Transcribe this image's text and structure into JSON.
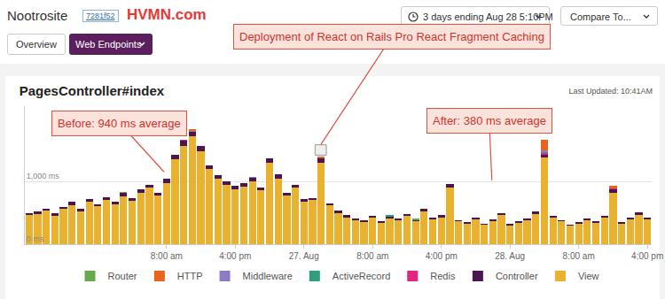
{
  "page": {
    "site": "Nootrosite",
    "commit": "7281f52",
    "brand": "HVMN.com",
    "range_picker": "3 days ending Aug 28 5:10PM",
    "compare": "Compare To...",
    "tabs": [
      "Overview",
      "Web Endpoints"
    ],
    "last_updated": "Last Updated: 10:41AM"
  },
  "chart_data": {
    "type": "bar",
    "stacked": true,
    "title": "PagesController#index",
    "annotations": [
      "Deployment of React on Rails Pro React Fragment Caching",
      "Before: 940 ms average",
      "After: 380 ms average"
    ],
    "categories": [
      null,
      null,
      null,
      null,
      null,
      null,
      null,
      null,
      null,
      null,
      null,
      null,
      null,
      null,
      null,
      null,
      "8:00 am",
      null,
      null,
      null,
      null,
      null,
      null,
      null,
      "4:00 pm",
      null,
      null,
      null,
      null,
      null,
      null,
      null,
      "27. Aug",
      null,
      null,
      null,
      null,
      null,
      null,
      null,
      "8:00 am",
      null,
      null,
      null,
      null,
      null,
      null,
      null,
      "4:00 pm",
      null,
      null,
      null,
      null,
      null,
      null,
      null,
      "28. Aug",
      null,
      null,
      null,
      null,
      null,
      null,
      null,
      "8:00 am",
      null,
      null,
      null,
      null,
      null,
      null,
      null,
      "4:00 pm"
    ],
    "series": [
      {
        "name": "Router",
        "color": "#6aa84f",
        "values": [
          0,
          0,
          0,
          0,
          0,
          0,
          0,
          0,
          0,
          0,
          0,
          15,
          0,
          0,
          0,
          0,
          0,
          0,
          0,
          0,
          0,
          0,
          0,
          0,
          0,
          0,
          0,
          0,
          0,
          0,
          0,
          0,
          0,
          0,
          0,
          0,
          0,
          0,
          0,
          0,
          0,
          0,
          0,
          0,
          0,
          20,
          0,
          0,
          0,
          0,
          0,
          0,
          0,
          0,
          0,
          0,
          0,
          0,
          0,
          0,
          0,
          0,
          0,
          0,
          0,
          0,
          0,
          0,
          0,
          0,
          0,
          0,
          0
        ]
      },
      {
        "name": "HTTP",
        "color": "#e8641b",
        "values": [
          0,
          0,
          0,
          0,
          0,
          0,
          0,
          0,
          0,
          0,
          0,
          0,
          0,
          0,
          0,
          0,
          0,
          0,
          0,
          25,
          0,
          0,
          0,
          0,
          0,
          0,
          0,
          0,
          0,
          0,
          0,
          0,
          0,
          0,
          20,
          0,
          0,
          0,
          0,
          0,
          0,
          0,
          0,
          0,
          0,
          0,
          0,
          0,
          0,
          0,
          0,
          0,
          0,
          0,
          0,
          0,
          0,
          0,
          0,
          0,
          170,
          0,
          0,
          0,
          0,
          0,
          0,
          0,
          30,
          0,
          0,
          0,
          0
        ]
      },
      {
        "name": "Middleware",
        "color": "#8e7cc3",
        "values": [
          0,
          0,
          0,
          0,
          0,
          0,
          0,
          0,
          0,
          0,
          0,
          0,
          0,
          0,
          0,
          0,
          0,
          0,
          0,
          20,
          0,
          0,
          0,
          0,
          0,
          0,
          15,
          0,
          0,
          0,
          0,
          0,
          0,
          0,
          0,
          0,
          0,
          0,
          0,
          0,
          0,
          0,
          0,
          0,
          0,
          0,
          0,
          0,
          0,
          0,
          0,
          0,
          0,
          0,
          0,
          0,
          0,
          0,
          0,
          0,
          20,
          0,
          0,
          0,
          0,
          0,
          0,
          0,
          0,
          0,
          0,
          0,
          0
        ]
      },
      {
        "name": "ActiveRecord",
        "color": "#2e9e7e",
        "values": [
          0,
          0,
          0,
          0,
          0,
          0,
          0,
          0,
          0,
          0,
          0,
          0,
          0,
          0,
          0,
          0,
          0,
          0,
          0,
          0,
          0,
          0,
          0,
          0,
          0,
          0,
          0,
          0,
          0,
          0,
          0,
          0,
          0,
          0,
          0,
          0,
          0,
          0,
          0,
          0,
          0,
          0,
          25,
          0,
          0,
          0,
          0,
          0,
          0,
          0,
          0,
          0,
          0,
          0,
          0,
          0,
          0,
          0,
          0,
          0,
          15,
          0,
          0,
          0,
          0,
          0,
          0,
          0,
          0,
          0,
          0,
          0,
          0
        ]
      },
      {
        "name": "Redis",
        "color": "#e0267f",
        "values": [
          0,
          0,
          0,
          0,
          0,
          0,
          0,
          0,
          0,
          0,
          0,
          0,
          0,
          0,
          0,
          0,
          0,
          0,
          20,
          0,
          0,
          0,
          0,
          0,
          0,
          0,
          0,
          0,
          0,
          0,
          0,
          0,
          0,
          0,
          0,
          0,
          0,
          0,
          0,
          0,
          0,
          0,
          0,
          0,
          0,
          0,
          0,
          0,
          0,
          0,
          0,
          0,
          0,
          0,
          0,
          0,
          0,
          0,
          0,
          0,
          25,
          0,
          0,
          0,
          0,
          0,
          0,
          0,
          15,
          0,
          0,
          0,
          0
        ]
      },
      {
        "name": "Controller",
        "color": "#4b1650",
        "values": [
          35,
          40,
          35,
          45,
          30,
          50,
          40,
          45,
          35,
          50,
          40,
          55,
          45,
          60,
          50,
          45,
          60,
          80,
          90,
          70,
          85,
          60,
          55,
          50,
          45,
          50,
          55,
          45,
          70,
          60,
          40,
          50,
          45,
          40,
          70,
          35,
          30,
          30,
          25,
          30,
          30,
          25,
          30,
          30,
          35,
          25,
          40,
          30,
          30,
          60,
          25,
          25,
          30,
          20,
          25,
          35,
          20,
          25,
          30,
          35,
          50,
          30,
          25,
          20,
          25,
          30,
          25,
          30,
          60,
          25,
          30,
          35,
          30
        ]
      },
      {
        "name": "View",
        "color": "#e8b130",
        "values": [
          460,
          480,
          530,
          450,
          560,
          620,
          520,
          680,
          600,
          700,
          640,
          760,
          690,
          820,
          900,
          780,
          980,
          1350,
          1560,
          1720,
          1480,
          1200,
          1050,
          950,
          880,
          920,
          1000,
          860,
          1300,
          1050,
          780,
          900,
          680,
          700,
          1300,
          620,
          500,
          430,
          380,
          350,
          420,
          340,
          410,
          380,
          450,
          360,
          520,
          400,
          430,
          900,
          360,
          330,
          400,
          310,
          370,
          460,
          300,
          340,
          380,
          480,
          1380,
          420,
          360,
          290,
          330,
          380,
          340,
          420,
          820,
          330,
          390,
          470,
          400
        ]
      }
    ],
    "ylim": [
      0,
      2200
    ],
    "yticks": [
      {
        "value": 0,
        "label": "0 ms"
      },
      {
        "value": 1000,
        "label": "1,000 ms"
      }
    ],
    "grid": true,
    "legend": "bottom"
  }
}
